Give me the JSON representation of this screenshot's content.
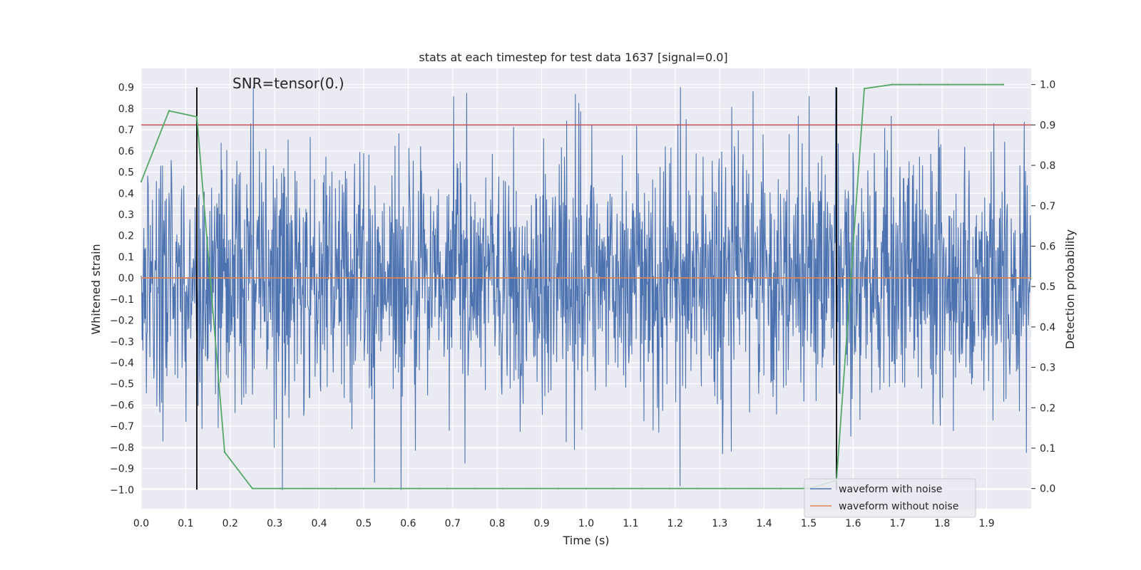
{
  "chart_data": {
    "type": "line",
    "title": "stats at each timestep for test data 1637 [signal=0.0]",
    "annotation": "SNR=tensor(0.)",
    "xlabel": "Time (s)",
    "ylabel_left": "Whitened strain",
    "ylabel_right": "Detection probability",
    "xlim": [
      0.0,
      2.0
    ],
    "ylim_left": [
      -1.09,
      0.99
    ],
    "ylim_right": [
      -0.05,
      1.04
    ],
    "x_ticks": [
      "0.0",
      "0.1",
      "0.2",
      "0.3",
      "0.4",
      "0.5",
      "0.6",
      "0.7",
      "0.8",
      "0.9",
      "1.0",
      "1.1",
      "1.2",
      "1.3",
      "1.4",
      "1.5",
      "1.6",
      "1.7",
      "1.8",
      "1.9"
    ],
    "y_ticks_left": [
      "−1.0",
      "−0.9",
      "−0.8",
      "−0.7",
      "−0.6",
      "−0.5",
      "−0.4",
      "−0.3",
      "−0.2",
      "−0.1",
      "0.0",
      "0.1",
      "0.2",
      "0.3",
      "0.4",
      "0.5",
      "0.6",
      "0.7",
      "0.8",
      "0.9"
    ],
    "y_ticks_right": [
      "0.0",
      "0.1",
      "0.2",
      "0.3",
      "0.4",
      "0.5",
      "0.6",
      "0.7",
      "0.8",
      "0.9",
      "1.0"
    ],
    "grid": true,
    "legend_position": "lower-right",
    "series": [
      {
        "name": "waveform with noise",
        "axis": "left",
        "color": "#4c72b0",
        "style": "dense noise",
        "duration_s": 2.0,
        "approx_range": [
          -1.0,
          0.9
        ],
        "approx_std": 0.3
      },
      {
        "name": "waveform without noise",
        "axis": "left",
        "color": "#dd8452",
        "x": [
          0.0,
          2.0
        ],
        "y": [
          0.0,
          0.0
        ]
      },
      {
        "axis": "right",
        "color": "#55a868",
        "x": [
          0.0,
          0.0625,
          0.125,
          0.1875,
          0.25,
          0.3125,
          0.375,
          0.4375,
          0.5,
          0.5625,
          0.625,
          0.6875,
          0.75,
          0.8125,
          0.875,
          0.9375,
          1.0,
          1.0625,
          1.125,
          1.1875,
          1.25,
          1.3125,
          1.375,
          1.4375,
          1.5,
          1.5625,
          1.625,
          1.6875,
          1.75,
          1.8125,
          1.875,
          1.9375
        ],
        "y": [
          0.76,
          0.935,
          0.92,
          0.09,
          0.0,
          0.0,
          0.0,
          0.0,
          0.0,
          0.0,
          0.0,
          0.0,
          0.0,
          0.0,
          0.0,
          0.0,
          0.0,
          0.0,
          0.0,
          0.0,
          0.0,
          0.0,
          0.0,
          0.0,
          0.0,
          0.02,
          0.99,
          1.0,
          1.0,
          1.0,
          1.0,
          1.0
        ]
      }
    ],
    "threshold": {
      "axis": "right",
      "value": 0.9,
      "color": "#c44e52"
    },
    "vertical_markers": {
      "x": [
        0.125,
        1.5625
      ],
      "range_left": [
        -1.0,
        0.9
      ],
      "color": "#000000"
    }
  }
}
